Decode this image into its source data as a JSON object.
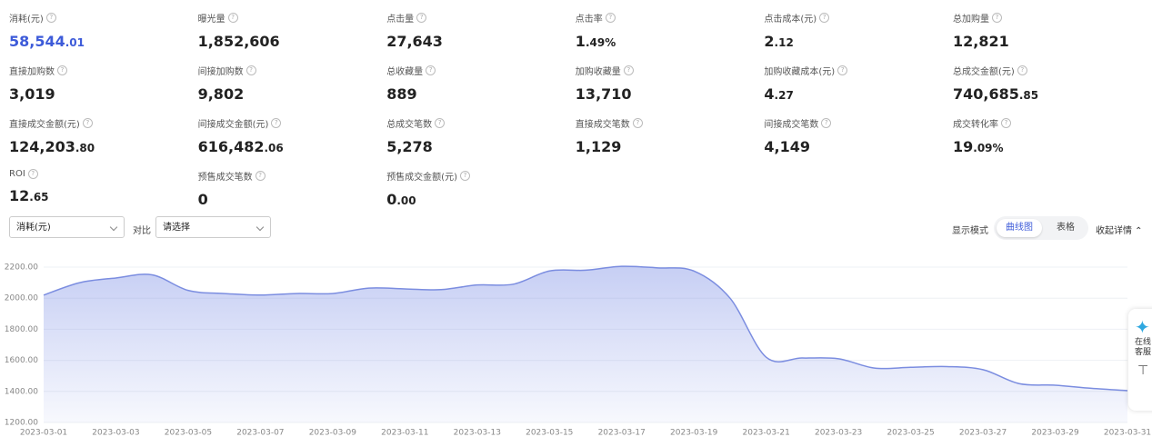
{
  "metrics": [
    {
      "label": "消耗(元)",
      "value": "58,544.01",
      "color": "#3d5bd9"
    },
    {
      "label": "曝光量",
      "value": "1,852,606"
    },
    {
      "label": "点击量",
      "value": "27,643"
    },
    {
      "label": "点击率",
      "value": "1.49%"
    },
    {
      "label": "点击成本(元)",
      "value": "2.12"
    },
    {
      "label": "总加购量",
      "value": "12,821"
    },
    {
      "label": "直接加购数",
      "value": "3,019"
    },
    {
      "label": "间接加购数",
      "value": "9,802"
    },
    {
      "label": "总收藏量",
      "value": "889"
    },
    {
      "label": "加购收藏量",
      "value": "13,710"
    },
    {
      "label": "加购收藏成本(元)",
      "value": "4.27"
    },
    {
      "label": "总成交金额(元)",
      "value": "740,685.85"
    },
    {
      "label": "直接成交金额(元)",
      "value": "124,203.80"
    },
    {
      "label": "间接成交金额(元)",
      "value": "616,482.06"
    },
    {
      "label": "总成交笔数",
      "value": "5,278"
    },
    {
      "label": "直接成交笔数",
      "value": "1,129"
    },
    {
      "label": "间接成交笔数",
      "value": "4,149"
    },
    {
      "label": "成交转化率",
      "value": "19.09%"
    },
    {
      "label": "ROI",
      "value": "12.65"
    },
    {
      "label": "预售成交笔数",
      "value": "0"
    },
    {
      "label": "预售成交金额(元)",
      "value": "0.00"
    }
  ],
  "controls": {
    "metric_select": "消耗(元)",
    "compare_label": "对比",
    "compare_select": "请选择",
    "display_mode_label": "显示模式",
    "modes": [
      "曲线图",
      "表格"
    ],
    "active_mode": 0,
    "collapse": "收起详情"
  },
  "side_widget": [
    "在线",
    "客服"
  ],
  "chart_data": {
    "type": "area",
    "categories": [
      "2023-03-01",
      null,
      "2023-03-03",
      null,
      "2023-03-05",
      null,
      "2023-03-07",
      null,
      "2023-03-09",
      null,
      "2023-03-11",
      null,
      "2023-03-13",
      null,
      "2023-03-15",
      null,
      "2023-03-17",
      null,
      "2023-03-19",
      null,
      "2023-03-21",
      null,
      "2023-03-23",
      null,
      "2023-03-25",
      null,
      "2023-03-27",
      null,
      "2023-03-29",
      null,
      "2023-03-31"
    ],
    "values": [
      2020,
      2100,
      2130,
      2150,
      2050,
      2030,
      2020,
      2030,
      2030,
      2065,
      2060,
      2055,
      2085,
      2090,
      2175,
      2180,
      2205,
      2195,
      2175,
      2000,
      1620,
      1615,
      1610,
      1550,
      1555,
      1560,
      1540,
      1450,
      1440,
      1420,
      1405
    ],
    "color": "#7b8de0",
    "ylim": [
      1200,
      2200
    ],
    "yticks": [
      {
        "value": 1200,
        "label": "1200.00"
      },
      {
        "value": 1400,
        "label": "1400.00"
      },
      {
        "value": 1600,
        "label": "1600.00"
      },
      {
        "value": 1800,
        "label": "1800.00"
      },
      {
        "value": 2000,
        "label": "2000.00"
      },
      {
        "value": 2200,
        "label": "2200.00"
      }
    ],
    "grid": true
  }
}
